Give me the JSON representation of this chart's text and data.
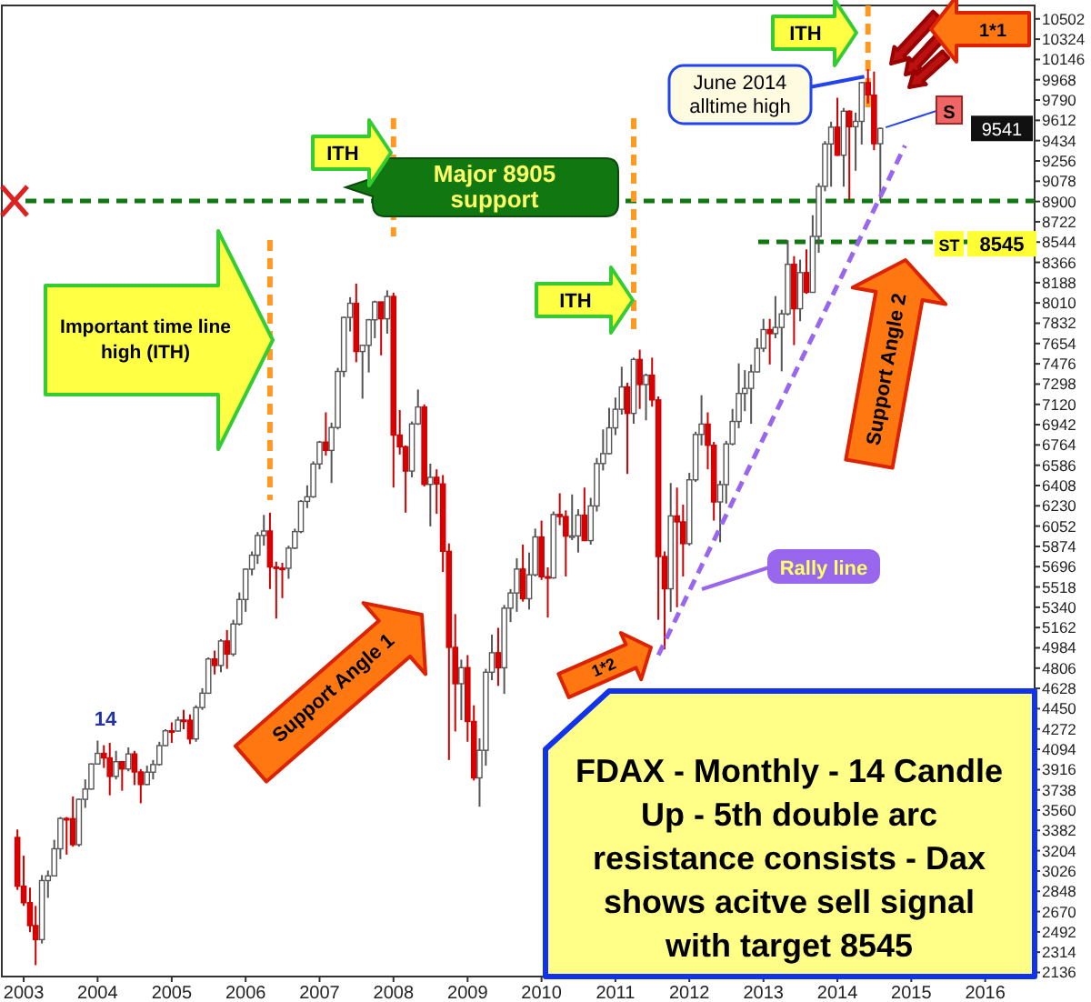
{
  "chart_data": {
    "type": "candlestick",
    "title": "FDAX - Monthly - 14 Candle Up - 5th double arc resistance consists - Dax shows acitve sell signal with target 8545",
    "x": [
      "2002-12",
      "2003-01",
      "2003-02",
      "2003-03",
      "2003-04",
      "2003-05",
      "2003-06",
      "2003-07",
      "2003-08",
      "2003-09",
      "2003-10",
      "2003-11",
      "2003-12",
      "2004-01",
      "2004-02",
      "2004-03",
      "2004-04",
      "2004-05",
      "2004-06",
      "2004-07",
      "2004-08",
      "2004-09",
      "2004-10",
      "2004-11",
      "2004-12",
      "2005-01",
      "2005-02",
      "2005-03",
      "2005-04",
      "2005-05",
      "2005-06",
      "2005-07",
      "2005-08",
      "2005-09",
      "2005-10",
      "2005-11",
      "2005-12",
      "2006-01",
      "2006-02",
      "2006-03",
      "2006-04",
      "2006-05",
      "2006-06",
      "2006-07",
      "2006-08",
      "2006-09",
      "2006-10",
      "2006-11",
      "2006-12",
      "2007-01",
      "2007-02",
      "2007-03",
      "2007-04",
      "2007-05",
      "2007-06",
      "2007-07",
      "2007-08",
      "2007-09",
      "2007-10",
      "2007-11",
      "2007-12",
      "2008-01",
      "2008-02",
      "2008-03",
      "2008-04",
      "2008-05",
      "2008-06",
      "2008-07",
      "2008-08",
      "2008-09",
      "2008-10",
      "2008-11",
      "2008-12",
      "2009-01",
      "2009-02",
      "2009-03",
      "2009-04",
      "2009-05",
      "2009-06",
      "2009-07",
      "2009-08",
      "2009-09",
      "2009-10",
      "2009-11",
      "2009-12",
      "2010-01",
      "2010-02",
      "2010-03",
      "2010-04",
      "2010-05",
      "2010-06",
      "2010-07",
      "2010-08",
      "2010-09",
      "2010-10",
      "2010-11",
      "2010-12",
      "2011-01",
      "2011-02",
      "2011-03",
      "2011-04",
      "2011-05",
      "2011-06",
      "2011-07",
      "2011-08",
      "2011-09",
      "2011-10",
      "2011-11",
      "2011-12",
      "2012-01",
      "2012-02",
      "2012-03",
      "2012-04",
      "2012-05",
      "2012-06",
      "2012-07",
      "2012-08",
      "2012-09",
      "2012-10",
      "2012-11",
      "2012-12",
      "2013-01",
      "2013-02",
      "2013-03",
      "2013-04",
      "2013-05",
      "2013-06",
      "2013-07",
      "2013-08",
      "2013-09",
      "2013-10",
      "2013-11",
      "2013-12",
      "2014-01",
      "2014-02",
      "2014-03",
      "2014-04",
      "2014-05",
      "2014-06",
      "2014-07",
      "2014-08"
    ],
    "ohlc": [
      [
        3320,
        3390,
        2860,
        2893
      ],
      [
        2893,
        3160,
        2720,
        2748
      ],
      [
        2748,
        2880,
        2490,
        2547
      ],
      [
        2547,
        2720,
        2200,
        2424
      ],
      [
        2424,
        2990,
        2390,
        2942
      ],
      [
        2942,
        3030,
        2790,
        2983
      ],
      [
        2983,
        3300,
        2980,
        3221
      ],
      [
        3221,
        3500,
        3130,
        3487
      ],
      [
        3487,
        3500,
        3170,
        3485
      ],
      [
        3485,
        3680,
        3240,
        3257
      ],
      [
        3257,
        3660,
        3240,
        3655
      ],
      [
        3655,
        3830,
        3580,
        3745
      ],
      [
        3745,
        3970,
        3740,
        3965
      ],
      [
        3965,
        4170,
        3960,
        4058
      ],
      [
        4058,
        4130,
        3930,
        4018
      ],
      [
        4018,
        4150,
        3690,
        3856
      ],
      [
        3856,
        4080,
        3830,
        3985
      ],
      [
        3985,
        3990,
        3730,
        3921
      ],
      [
        3921,
        4110,
        3900,
        4053
      ],
      [
        4053,
        4080,
        3780,
        3895
      ],
      [
        3895,
        3920,
        3620,
        3785
      ],
      [
        3785,
        3950,
        3780,
        3893
      ],
      [
        3893,
        4000,
        3830,
        3960
      ],
      [
        3960,
        4160,
        3950,
        4126
      ],
      [
        4126,
        4270,
        4120,
        4256
      ],
      [
        4256,
        4330,
        4150,
        4254
      ],
      [
        4254,
        4380,
        4250,
        4350
      ],
      [
        4350,
        4440,
        4270,
        4349
      ],
      [
        4349,
        4400,
        4140,
        4185
      ],
      [
        4185,
        4480,
        4160,
        4460
      ],
      [
        4460,
        4630,
        4440,
        4586
      ],
      [
        4586,
        4900,
        4580,
        4886
      ],
      [
        4886,
        4960,
        4750,
        4829
      ],
      [
        4829,
        5060,
        4770,
        5044
      ],
      [
        5044,
        5140,
        4800,
        4929
      ],
      [
        4929,
        5230,
        4910,
        5193
      ],
      [
        5193,
        5470,
        5180,
        5408
      ],
      [
        5408,
        5680,
        5300,
        5674
      ],
      [
        5674,
        5830,
        5620,
        5797
      ],
      [
        5797,
        6000,
        5720,
        5970
      ],
      [
        5970,
        6150,
        5880,
        6009
      ],
      [
        6009,
        6170,
        5500,
        5693
      ],
      [
        5693,
        5740,
        5240,
        5683
      ],
      [
        5683,
        5730,
        5420,
        5682
      ],
      [
        5682,
        5880,
        5590,
        5859
      ],
      [
        5859,
        6030,
        5850,
        6004
      ],
      [
        6004,
        6280,
        5990,
        6269
      ],
      [
        6269,
        6410,
        6210,
        6309
      ],
      [
        6309,
        6620,
        6300,
        6597
      ],
      [
        6597,
        6800,
        6550,
        6789
      ],
      [
        6789,
        7050,
        6670,
        6716
      ],
      [
        6716,
        6960,
        6430,
        6917
      ],
      [
        6917,
        7440,
        6900,
        7409
      ],
      [
        7409,
        7890,
        7360,
        7883
      ],
      [
        7883,
        8060,
        7760,
        8007
      ],
      [
        8007,
        8180,
        7490,
        7584
      ],
      [
        7584,
        7640,
        7170,
        7638
      ],
      [
        7638,
        7870,
        7400,
        7862
      ],
      [
        7862,
        8030,
        7700,
        8019
      ],
      [
        8019,
        8020,
        7550,
        7871
      ],
      [
        7871,
        8120,
        7740,
        8067
      ],
      [
        8067,
        8100,
        6390,
        6851
      ],
      [
        6851,
        7070,
        6680,
        6748
      ],
      [
        6748,
        6760,
        6170,
        6535
      ],
      [
        6535,
        6970,
        6480,
        6949
      ],
      [
        6949,
        7250,
        6940,
        7097
      ],
      [
        7097,
        7120,
        6400,
        6418
      ],
      [
        6418,
        6600,
        6050,
        6480
      ],
      [
        6480,
        6550,
        6160,
        6422
      ],
      [
        6422,
        6500,
        5650,
        5831
      ],
      [
        5831,
        5900,
        4000,
        4988
      ],
      [
        4988,
        5280,
        4250,
        4669
      ],
      [
        4669,
        4880,
        4350,
        4810
      ],
      [
        4810,
        4920,
        4160,
        4338
      ],
      [
        4338,
        4480,
        3820,
        3843
      ],
      [
        3843,
        4190,
        3590,
        4085
      ],
      [
        4085,
        4800,
        3950,
        4770
      ],
      [
        4770,
        5100,
        4700,
        4941
      ],
      [
        4941,
        5160,
        4650,
        4809
      ],
      [
        4809,
        5360,
        4580,
        5332
      ],
      [
        5332,
        5500,
        5210,
        5465
      ],
      [
        5465,
        5770,
        5300,
        5675
      ],
      [
        5675,
        5890,
        5390,
        5415
      ],
      [
        5415,
        5820,
        5320,
        5625
      ],
      [
        5625,
        6030,
        5610,
        5957
      ],
      [
        5957,
        6100,
        5580,
        5608
      ],
      [
        5608,
        5690,
        5250,
        5598
      ],
      [
        5598,
        6180,
        5590,
        6154
      ],
      [
        6154,
        6340,
        6060,
        6136
      ],
      [
        6136,
        6190,
        5610,
        5964
      ],
      [
        5964,
        6330,
        5930,
        5966
      ],
      [
        5966,
        6200,
        5820,
        6148
      ],
      [
        6148,
        6390,
        5920,
        5925
      ],
      [
        5925,
        6300,
        5890,
        6229
      ],
      [
        6229,
        6650,
        6180,
        6601
      ],
      [
        6601,
        6900,
        6540,
        6688
      ],
      [
        6688,
        7090,
        6680,
        6914
      ],
      [
        6914,
        7180,
        6850,
        7077
      ],
      [
        7077,
        7450,
        7030,
        7273
      ],
      [
        7273,
        7310,
        6510,
        7041
      ],
      [
        7041,
        7530,
        6950,
        7514
      ],
      [
        7514,
        7600,
        7080,
        7294
      ],
      [
        7294,
        7390,
        6980,
        7376
      ],
      [
        7376,
        7530,
        7100,
        7159
      ],
      [
        7159,
        7190,
        5230,
        5785
      ],
      [
        5785,
        5830,
        4970,
        5502
      ],
      [
        5502,
        6430,
        5300,
        6141
      ],
      [
        6141,
        6390,
        5340,
        6089
      ],
      [
        6089,
        6240,
        5610,
        5898
      ],
      [
        5898,
        6520,
        5880,
        6458
      ],
      [
        6458,
        6880,
        6440,
        6856
      ],
      [
        6856,
        7200,
        6760,
        6947
      ],
      [
        6947,
        7050,
        6550,
        6761
      ],
      [
        6761,
        6790,
        6100,
        6264
      ],
      [
        6264,
        6450,
        5910,
        6416
      ],
      [
        6416,
        6800,
        6250,
        6773
      ],
      [
        6773,
        7080,
        6760,
        6970
      ],
      [
        6970,
        7480,
        6910,
        7216
      ],
      [
        7216,
        7420,
        7060,
        7260
      ],
      [
        7260,
        7470,
        6950,
        7405
      ],
      [
        7405,
        7700,
        7400,
        7612
      ],
      [
        7612,
        7870,
        7580,
        7776
      ],
      [
        7776,
        7870,
        7470,
        7741
      ],
      [
        7741,
        8070,
        7700,
        7795
      ],
      [
        7795,
        7950,
        7410,
        7914
      ],
      [
        7914,
        8560,
        7900,
        8349
      ],
      [
        8349,
        8420,
        7640,
        7959
      ],
      [
        7959,
        8390,
        7850,
        8276
      ],
      [
        8276,
        8480,
        8090,
        8103
      ],
      [
        8103,
        8780,
        8100,
        8594
      ],
      [
        8594,
        9060,
        8450,
        9033
      ],
      [
        9033,
        9430,
        8990,
        9405
      ],
      [
        9405,
        9600,
        9030,
        9552
      ],
      [
        9552,
        9810,
        9300,
        9306
      ],
      [
        9306,
        9720,
        9030,
        9692
      ],
      [
        9692,
        9700,
        8910,
        9556
      ],
      [
        9556,
        9680,
        9170,
        9603
      ],
      [
        9603,
        9950,
        9400,
        9943
      ],
      [
        9943,
        10060,
        9760,
        9833
      ],
      [
        9833,
        10040,
        9350,
        9407
      ],
      [
        9407,
        9550,
        8905,
        9541
      ]
    ],
    "series": [
      {
        "name": "Rally line",
        "type": "line",
        "color": "#9966ee",
        "line_style": "dashed",
        "x": [
          "2011-08",
          "2014-12"
        ],
        "values": [
          4920,
          9390
        ]
      }
    ],
    "xlim": [
      "2002-09-15",
      "2016-09-01"
    ],
    "xticks": [
      "2003",
      "2004",
      "2005",
      "2006",
      "2007",
      "2008",
      "2009",
      "2010",
      "2011",
      "2012",
      "2013",
      "2014",
      "2015",
      "2016"
    ],
    "ylim": [
      2100,
      10620
    ],
    "yticks": [
      2136,
      2314,
      2492,
      2670,
      2848,
      3026,
      3204,
      3382,
      3560,
      3738,
      3916,
      4094,
      4272,
      4450,
      4628,
      4806,
      4984,
      5162,
      5340,
      5518,
      5696,
      5874,
      6052,
      6230,
      6408,
      6586,
      6764,
      6942,
      7120,
      7298,
      7476,
      7654,
      7832,
      8010,
      8188,
      8366,
      8544,
      8722,
      8900,
      9078,
      9256,
      9434,
      9612,
      9790,
      9968,
      10146,
      10324,
      10502
    ],
    "ref_lines": [
      {
        "axis": "y",
        "value": 8905,
        "label": "Major 8905 support",
        "color": "#117711",
        "line_style": "dashed"
      },
      {
        "axis": "y",
        "value": 8545,
        "label": "8545",
        "color": "#117711",
        "line_style": "dashed"
      },
      {
        "axis": "x",
        "value": "2006-05",
        "color": "#ff9922",
        "line_style": "dashed"
      },
      {
        "axis": "x",
        "value": "2008-01",
        "color": "#ff9922",
        "line_style": "dashed"
      },
      {
        "axis": "x",
        "value": "2011-04",
        "color": "#ff9922",
        "line_style": "dashed"
      },
      {
        "axis": "x",
        "value": "2014-06",
        "color": "#ff9922",
        "line_style": "dashed"
      }
    ],
    "annotations": [
      "Important time line high (ITH)",
      "ITH",
      "ITH",
      "ITH",
      {
        "text": "June 2014 alltime high",
        "x": "2014-06",
        "y": 10060
      },
      "Support Angle 1",
      "Support Angle 2",
      "1*1",
      "1*2",
      "14",
      {
        "text": "S",
        "x": "2014-08",
        "y": 9550
      },
      "ST",
      "9541"
    ]
  }
}
